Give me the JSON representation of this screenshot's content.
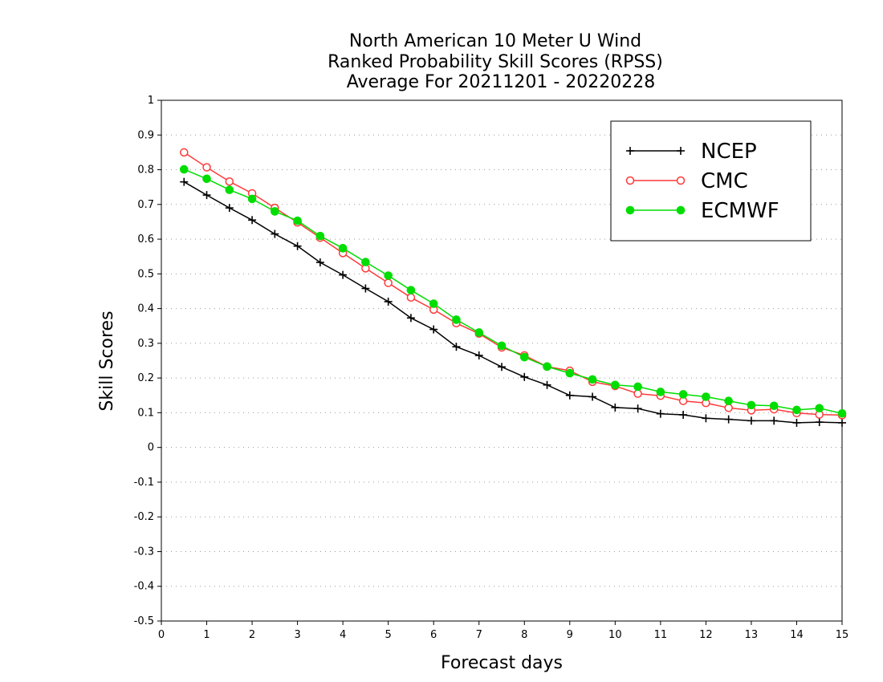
{
  "chart_data": {
    "type": "line",
    "title": [
      "North American 10 Meter U Wind",
      "Ranked Probability Skill Scores (RPSS)",
      "Average For 20211201 - 20220228"
    ],
    "xlabel": "Forecast days",
    "ylabel": "Skill Scores",
    "xlim": [
      0,
      15
    ],
    "ylim": [
      -0.5,
      1
    ],
    "xticks": [
      0,
      1,
      2,
      3,
      4,
      5,
      6,
      7,
      8,
      9,
      10,
      11,
      12,
      13,
      14,
      15
    ],
    "yticks": [
      -0.5,
      -0.4,
      -0.3,
      -0.2,
      -0.1,
      0,
      0.1,
      0.2,
      0.3,
      0.4,
      0.5,
      0.6,
      0.7,
      0.8,
      0.9,
      1
    ],
    "ytick_labels": [
      "-0.5",
      "-0.4",
      "-0.3",
      "-0.2",
      "-0.1",
      "0",
      "0.1",
      "0.2",
      "0.3",
      "0.4",
      "0.5",
      "0.6",
      "0.7",
      "0.8",
      "0.9",
      "1"
    ],
    "grid": "horizontal-dotted",
    "legend_position": "top-right",
    "x": [
      0.5,
      1,
      1.5,
      2,
      2.5,
      3,
      3.5,
      4,
      4.5,
      5,
      5.5,
      6,
      6.5,
      7,
      7.5,
      8,
      8.5,
      9,
      9.5,
      10,
      10.5,
      11,
      11.5,
      12,
      12.5,
      13,
      13.5,
      14,
      14.5,
      15
    ],
    "series": [
      {
        "name": "NCEP",
        "color": "#000000",
        "marker": "plus",
        "values": [
          0.765,
          0.727,
          0.69,
          0.655,
          0.615,
          0.58,
          0.533,
          0.497,
          0.458,
          0.42,
          0.373,
          0.34,
          0.29,
          0.265,
          0.232,
          0.203,
          0.18,
          0.15,
          0.146,
          0.115,
          0.112,
          0.097,
          0.094,
          0.084,
          0.081,
          0.077,
          0.077,
          0.071,
          0.073,
          0.071
        ]
      },
      {
        "name": "CMC",
        "color": "#ff3a3a",
        "marker": "open-circle",
        "values": [
          0.85,
          0.807,
          0.766,
          0.732,
          0.69,
          0.648,
          0.604,
          0.56,
          0.516,
          0.474,
          0.432,
          0.397,
          0.358,
          0.328,
          0.288,
          0.265,
          0.233,
          0.221,
          0.189,
          0.177,
          0.155,
          0.149,
          0.134,
          0.128,
          0.114,
          0.107,
          0.11,
          0.099,
          0.095,
          0.093
        ]
      },
      {
        "name": "ECMWF",
        "color": "#00dd00",
        "marker": "filled-circle",
        "values": [
          0.801,
          0.774,
          0.742,
          0.716,
          0.68,
          0.653,
          0.609,
          0.574,
          0.534,
          0.495,
          0.453,
          0.414,
          0.368,
          0.331,
          0.293,
          0.26,
          0.233,
          0.214,
          0.196,
          0.18,
          0.175,
          0.16,
          0.153,
          0.146,
          0.134,
          0.122,
          0.12,
          0.108,
          0.113,
          0.098
        ]
      }
    ]
  }
}
